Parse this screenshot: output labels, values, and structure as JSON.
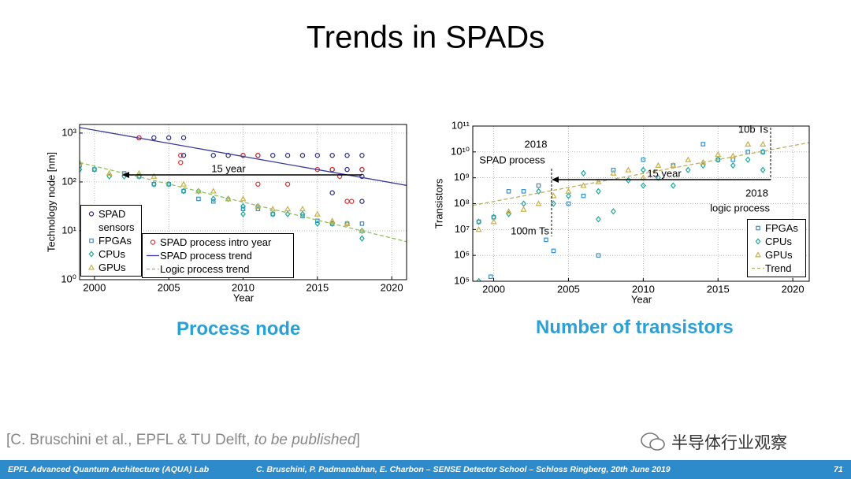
{
  "slide": {
    "title": "Trends in SPADs",
    "captions": [
      "Process node",
      "Number of transistors"
    ],
    "citation": [
      "[C. Bruschini et al., EPFL & TU Delft, ",
      "to be published",
      "]"
    ],
    "watermark": "半导体行业观察",
    "footer": {
      "left": "EPFL Advanced Quantum Architecture (AQUA) Lab",
      "center": "C. Bruschini, P. Padmanabhan, E. Charbon – SENSE Detector School – Schloss Ringberg, 20th June 2019",
      "page": 71
    }
  },
  "chart_data": [
    {
      "type": "scatter",
      "xlabel": "Year",
      "ylabel": "Technology node [nm]",
      "log_y": true,
      "grid": true,
      "legend": "lower left",
      "xlim": [
        1999,
        2021
      ],
      "ylim": [
        1,
        1500
      ],
      "xticks": [
        2000,
        2005,
        2010,
        2015,
        2020
      ],
      "yticks": [
        {
          "value": 1,
          "label": "10⁰"
        },
        {
          "value": 10,
          "label": "10¹"
        },
        {
          "value": 100,
          "label": "10²"
        },
        {
          "value": 1000,
          "label": "10³"
        }
      ],
      "annotations": [
        "15 year"
      ],
      "series": [
        {
          "name": "SPAD sensors",
          "marker": "o",
          "color": "#2b2b8c",
          "x": [
            2003,
            2004,
            2005,
            2006,
            2006,
            2008,
            2009,
            2010,
            2011,
            2012,
            2013,
            2014,
            2015,
            2016,
            2017,
            2018,
            2016,
            2017,
            2018,
            2018,
            2016,
            2018
          ],
          "values": [
            800,
            800,
            800,
            800,
            350,
            350,
            350,
            350,
            350,
            350,
            350,
            350,
            350,
            350,
            350,
            350,
            180,
            180,
            180,
            130,
            60,
            40
          ]
        },
        {
          "name": "FPGAs",
          "marker": "s",
          "color": "#3a8fd0",
          "x": [
            1999,
            2000,
            2002,
            2003,
            2004,
            2005,
            2006,
            2007,
            2008,
            2010,
            2011,
            2012,
            2014,
            2015,
            2016,
            2017,
            2018
          ],
          "values": [
            220,
            180,
            150,
            130,
            90,
            90,
            65,
            45,
            40,
            28,
            28,
            22,
            20,
            16,
            14,
            14,
            14
          ]
        },
        {
          "name": "CPUs",
          "marker": "d",
          "color": "#1fa89a",
          "x": [
            1999,
            2000,
            2001,
            2002,
            2003,
            2004,
            2005,
            2006,
            2007,
            2008,
            2009,
            2010,
            2010,
            2011,
            2012,
            2013,
            2014,
            2015,
            2016,
            2017,
            2018,
            2018
          ],
          "values": [
            180,
            180,
            130,
            130,
            130,
            90,
            90,
            65,
            65,
            45,
            45,
            32,
            22,
            32,
            22,
            22,
            22,
            14,
            14,
            14,
            10,
            7
          ]
        },
        {
          "name": "GPUs",
          "marker": "^",
          "color": "#c8b04a",
          "x": [
            1999,
            2001,
            2003,
            2004,
            2006,
            2007,
            2008,
            2009,
            2010,
            2011,
            2012,
            2013,
            2014,
            2015,
            2016,
            2017,
            2018
          ],
          "values": [
            250,
            150,
            150,
            130,
            90,
            65,
            65,
            45,
            45,
            32,
            28,
            28,
            28,
            22,
            16,
            14,
            10
          ]
        },
        {
          "name": "SPAD process intro year",
          "marker": "o",
          "color": "#d83030",
          "x": [
            2003,
            2005.8,
            2005.8,
            2010,
            2011,
            2015,
            2016,
            2016.5,
            2011,
            2013,
            2017,
            2017.3,
            2018
          ],
          "values": [
            800,
            350,
            250,
            350,
            350,
            180,
            180,
            130,
            90,
            90,
            40,
            40,
            180
          ]
        },
        {
          "name": "SPAD process trend",
          "marker": "line",
          "color": "#3a3a9a",
          "x": [
            1999,
            2021
          ],
          "values": [
            1300,
            85
          ]
        },
        {
          "name": "Logic process trend",
          "marker": "dash",
          "color": "#8fc060",
          "x": [
            1999,
            2021
          ],
          "values": [
            250,
            6
          ]
        }
      ]
    },
    {
      "type": "scatter",
      "xlabel": "Year",
      "ylabel": "Transistors",
      "log_y": true,
      "grid": true,
      "legend": "lower right",
      "xlim": [
        1998.6,
        2021.1
      ],
      "ylim": [
        100000,
        100000000000
      ],
      "xticks": [
        2000,
        2005,
        2010,
        2015,
        2020
      ],
      "yticks": [
        {
          "value": 100000,
          "label": "10⁵"
        },
        {
          "value": 1000000,
          "label": "10⁶"
        },
        {
          "value": 10000000,
          "label": "10⁷"
        },
        {
          "value": 100000000,
          "label": "10⁸"
        },
        {
          "value": 1000000000,
          "label": "10⁹"
        },
        {
          "value": 10000000000,
          "label": "10¹⁰"
        },
        {
          "value": 100000000000,
          "label": "10¹¹"
        }
      ],
      "annotations": [
        "10b Ts",
        "2018",
        "SPAD process",
        "100m Ts",
        "15 year",
        "2018",
        "logic process"
      ],
      "series": [
        {
          "name": "FPGAs",
          "marker": "s",
          "color": "#3a8fd0",
          "x": [
            1999,
            1999.8,
            2000,
            2001,
            2002,
            2003,
            2003.5,
            2004,
            2005,
            2006,
            2007,
            2008,
            2010,
            2012,
            2014,
            2015,
            2016,
            2017,
            2018
          ],
          "values": [
            20000000,
            150000,
            30000000,
            300000000,
            300000000,
            500000000,
            4000000,
            1500000,
            100000000,
            200000000,
            1000000,
            2000000000,
            5000000000,
            3000000000,
            20000000000,
            5000000000,
            5000000000,
            10000000000,
            10000000000
          ]
        },
        {
          "name": "CPUs",
          "marker": "d",
          "color": "#1fa89a",
          "x": [
            1999,
            1999,
            2000,
            2001,
            2002,
            2003,
            2004,
            2005,
            2006,
            2007,
            2007,
            2008,
            2009,
            2010,
            2010,
            2011,
            2012,
            2013,
            2014,
            2015,
            2016,
            2017,
            2018,
            2018
          ],
          "values": [
            100000,
            20000000,
            30000000,
            40000000,
            100000000,
            300000000,
            100000000,
            200000000,
            1500000000,
            25000000,
            300000000,
            50000000,
            800000000,
            500000000,
            2000000000,
            1000000000,
            500000000,
            2000000000,
            3000000000,
            5000000000,
            3000000000,
            5000000000,
            10000000000,
            2000000000
          ]
        },
        {
          "name": "GPUs",
          "marker": "^",
          "color": "#c8b04a",
          "x": [
            1999,
            2000,
            2001,
            2002,
            2003,
            2004,
            2005,
            2006,
            2007,
            2008,
            2009,
            2010,
            2011,
            2012,
            2013,
            2014,
            2015,
            2016,
            2017,
            2018
          ],
          "values": [
            10000000,
            20000000,
            50000000,
            60000000,
            100000000,
            200000000,
            300000000,
            500000000,
            700000000,
            1500000000,
            2000000000,
            1000000000,
            3000000000,
            3000000000,
            5000000000,
            4000000000,
            8000000000,
            7000000000,
            20000000000,
            20000000000
          ]
        },
        {
          "name": "Trend",
          "marker": "dash",
          "color": "#b8b060",
          "x": [
            1998.6,
            2021.1
          ],
          "values": [
            86000000,
            23000000000
          ]
        }
      ]
    }
  ]
}
